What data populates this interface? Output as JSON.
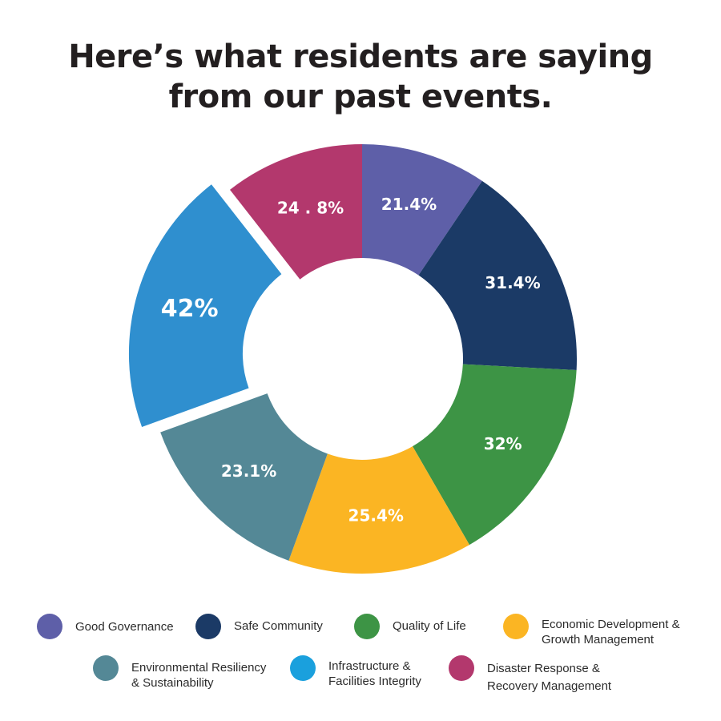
{
  "title": {
    "line1": "Here’s what residents are saying",
    "line2": "from our past events."
  },
  "chart_data": {
    "type": "pie",
    "style": "donut",
    "exploded": "Infrastructure & Facilities Integrity",
    "categories": [
      "Good Governance",
      "Safe Community",
      "Quality of Life",
      "Economic Development & Growth Management",
      "Environmental Resiliency & Sustainability",
      "Infrastructure & Facilities Integrity",
      "Disaster Response & Recovery Management"
    ],
    "values": [
      21.4,
      31.4,
      32,
      25.4,
      23.1,
      42,
      24.8
    ],
    "data_labels": [
      "21.4%",
      "31.4%",
      "32%",
      "25.4%",
      "23.1%",
      "42%",
      "24 . 8%"
    ],
    "colors": [
      "#5e5fa8",
      "#1b3a66",
      "#3d9445",
      "#fbb523",
      "#548896",
      "#2f8fcf",
      "#b3386d"
    ],
    "legend_position": "bottom"
  },
  "legend": {
    "items": [
      {
        "label": "Good Governance",
        "color": "#5e5fa8"
      },
      {
        "label": "Safe Community",
        "color": "#1b3a66"
      },
      {
        "label": "Quality of Life",
        "color": "#3d9445"
      },
      {
        "label": "Economic Development &\nGrowth Management",
        "color": "#fbb523"
      },
      {
        "label": "Environmental Resiliency\n& Sustainability",
        "color": "#548896"
      },
      {
        "label": "Infrastructure &\nFacilities Integrity",
        "color": "#1aa0dd"
      },
      {
        "label": "Disaster Response &\nRecovery Management",
        "color": "#b3386d"
      }
    ]
  }
}
